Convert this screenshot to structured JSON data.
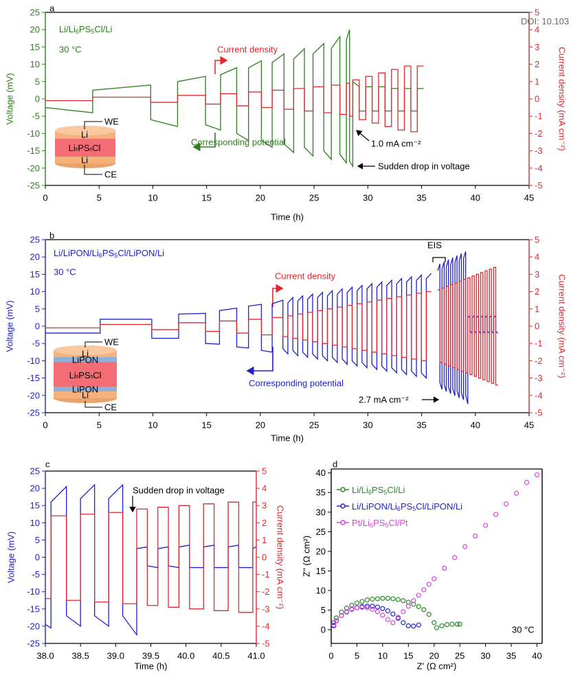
{
  "chart_data": [
    {
      "type": "line",
      "panel_label": "a",
      "x_label": "Time (h)",
      "y_label": "Voltage (mV)",
      "y2_label": "Current density (mA cm⁻²)",
      "xlim": [
        0,
        45
      ],
      "xticks": [
        0,
        5,
        10,
        15,
        20,
        25,
        30,
        35,
        40,
        45
      ],
      "ylim": [
        -25,
        25
      ],
      "yticks": [
        -25,
        -20,
        -15,
        -10,
        -5,
        0,
        5,
        10,
        15,
        20,
        25
      ],
      "y2lim": [
        -5,
        5
      ],
      "y2ticks": [
        -5,
        -4,
        -3,
        -2,
        -1,
        0,
        1,
        2,
        3,
        4,
        5
      ],
      "x": [
        0,
        4.4,
        4.4,
        9.8,
        9.8,
        12.3,
        12.3,
        14.9,
        14.9,
        16.3,
        16.3,
        17.8,
        17.8,
        18.9,
        18.9,
        20.1,
        20.1,
        21.1,
        21.1,
        22.2,
        22.2,
        23.1,
        23.1,
        24.1,
        24.1,
        24.9,
        24.9,
        25.9,
        25.9,
        26.6,
        26.6,
        27.4,
        27.4,
        28.0,
        28.0,
        28.3,
        28.3,
        28.6,
        28.6,
        29.2,
        29.2,
        29.8,
        29.8,
        30.4,
        30.4,
        31.0,
        31.0,
        31.6,
        31.6,
        32.2,
        32.2,
        32.8,
        32.8,
        33.4,
        33.4,
        34.0,
        34.0,
        34.6,
        34.6,
        35.2
      ],
      "series": [
        {
          "name": "Corresponding potential",
          "color": "#2e7d1f",
          "values": [
            -2.5,
            -4,
            2.5,
            4,
            -6,
            -8,
            5,
            6.5,
            -7.5,
            -9,
            7,
            9,
            -10,
            -12,
            9,
            11,
            -12,
            -14,
            10.5,
            13,
            -13,
            -15.5,
            11.5,
            14.5,
            -14,
            -16.5,
            13,
            16,
            -15,
            -17.5,
            14.5,
            18,
            -16,
            -18.5,
            17,
            20,
            -18,
            -19.5,
            5,
            3.5,
            -3.5,
            -3.5,
            3.5,
            3.5,
            -3.5,
            -3.5,
            3.5,
            3.5,
            -3.5,
            -3.5,
            3,
            3,
            -3.5,
            -3.5,
            3,
            3,
            -3.5,
            -3.5,
            3,
            3
          ]
        },
        {
          "name": "Current density",
          "color": "#e0282e",
          "axis": "y2",
          "values": [
            -0.1,
            -0.1,
            0.1,
            0.1,
            -0.2,
            -0.2,
            0.2,
            0.2,
            -0.3,
            -0.3,
            0.3,
            0.3,
            -0.4,
            -0.4,
            0.4,
            0.4,
            -0.5,
            -0.5,
            0.5,
            0.5,
            -0.6,
            -0.6,
            0.6,
            0.6,
            -0.7,
            -0.7,
            0.7,
            0.7,
            -0.8,
            -0.8,
            0.8,
            0.8,
            -0.9,
            -0.9,
            0.9,
            0.9,
            -1.0,
            -1.0,
            1.1,
            1.1,
            -1.2,
            -1.2,
            1.3,
            1.3,
            -1.4,
            -1.4,
            1.5,
            1.5,
            -1.6,
            -1.6,
            1.7,
            1.7,
            -1.8,
            -1.8,
            1.9,
            1.9,
            -1.9,
            -1.9,
            1.9,
            1.9
          ]
        }
      ],
      "annotations": [
        "Li/Li6PS5Cl/Li",
        "30 °C",
        "1.0 mA cm⁻²",
        "Sudden drop in voltage",
        "WE",
        "Li",
        "Li6PS5Cl",
        "Li",
        "CE",
        "DOI: 10.103"
      ]
    },
    {
      "type": "line",
      "panel_label": "b",
      "x_label": "Time (h)",
      "y_label": "Voltage (mV)",
      "y2_label": "Current density (mA cm⁻²)",
      "xlim": [
        0,
        45
      ],
      "xticks": [
        0,
        5,
        10,
        15,
        20,
        25,
        30,
        35,
        40,
        45
      ],
      "ylim": [
        -25,
        25
      ],
      "yticks": [
        -25,
        -20,
        -15,
        -10,
        -5,
        0,
        5,
        10,
        15,
        20,
        25
      ],
      "y2lim": [
        -5,
        5
      ],
      "y2ticks": [
        -5,
        -4,
        -3,
        -2,
        -1,
        0,
        1,
        2,
        3,
        4,
        5
      ],
      "x": [
        0,
        5.1,
        5.1,
        9.9,
        9.9,
        12.4,
        12.4,
        14.9,
        14.9,
        16.2,
        16.2,
        17.8,
        17.8,
        18.9,
        18.9,
        20.1,
        20.1,
        21.1,
        21.1,
        22.1,
        22.1,
        22.56,
        22.56,
        23.02,
        23.02,
        23.48,
        23.48,
        23.94,
        23.94,
        24.4,
        24.4,
        24.86,
        24.86,
        25.32,
        25.32,
        25.78,
        25.78,
        26.24,
        26.24,
        26.7,
        26.7,
        27.16,
        27.16,
        27.62,
        27.62,
        28.08,
        28.08,
        28.54,
        28.54,
        29.0,
        29.0,
        29.46,
        29.46,
        29.92,
        29.92,
        30.38,
        30.38,
        30.84,
        30.84,
        31.3,
        31.3,
        31.76,
        31.76,
        32.22,
        32.22,
        32.68,
        32.68,
        33.14,
        33.14,
        33.6,
        33.6,
        34.06,
        34.06,
        34.52,
        34.52,
        34.98,
        34.98,
        35.44,
        35.44,
        35.9,
        36.2,
        36.5,
        36.7,
        36.7,
        36.9,
        36.9,
        37.1,
        37.1,
        37.3,
        37.3,
        37.5,
        37.5,
        37.7,
        37.7,
        37.9,
        37.9,
        38.1,
        38.1,
        38.3,
        38.3,
        38.5,
        38.5,
        38.7,
        38.7,
        38.9,
        38.9,
        39.1,
        39.1,
        39.3,
        39.3,
        39.5,
        39.5,
        39.7,
        39.7,
        39.9,
        39.9,
        40.1,
        40.1,
        40.3,
        40.3,
        40.5,
        40.5,
        40.7,
        40.7,
        40.9,
        40.9,
        41.1,
        41.1,
        41.3,
        41.3,
        41.5,
        41.5,
        41.7,
        41.7,
        41.9,
        41.9,
        42.1
      ],
      "series": [
        {
          "name": "Corresponding potential",
          "color": "#2020c8",
          "values": [
            -2,
            -2,
            2,
            2,
            -3.5,
            -3.5,
            3.5,
            3.7,
            -5,
            -5.2,
            4.5,
            5.2,
            -6,
            -6.3,
            5.8,
            6.3,
            -7,
            -7.5,
            6.5,
            7.5,
            -6.5,
            -8,
            6.75,
            8.25,
            -7,
            -8.5,
            7.25,
            8.75,
            -7.5,
            -9,
            7.75,
            9.25,
            -8,
            -9.5,
            8.25,
            9.75,
            -8.5,
            -10,
            8.75,
            10.25,
            -9,
            -10.5,
            9.25,
            10.75,
            -9.5,
            -11,
            9.75,
            11.25,
            -10,
            -11.5,
            10.25,
            11.75,
            -10.5,
            -12,
            10.75,
            12.25,
            -11,
            -12.5,
            11.25,
            12.75,
            -11.5,
            -13,
            11.75,
            13.25,
            -12,
            -13.5,
            12.25,
            13.75,
            -12.5,
            -14,
            12.75,
            14.25,
            -13,
            -14.5,
            13.25,
            14.75,
            -13.5,
            -15,
            13.75,
            15.25,
            null,
            16,
            18,
            -16.3,
            -18.3,
            16.6,
            18.6,
            -16.9,
            -18.9,
            17.2,
            19.2,
            -17.5,
            -19.5,
            17.8,
            19.8,
            -18.1,
            -20.1,
            18.4,
            20.4,
            -18.7,
            -20.7,
            19,
            21,
            -19.3,
            -21.3,
            19.6,
            21.6,
            -19.9,
            -22.5,
            2.5,
            3,
            -1.5,
            -2,
            2.5,
            3,
            -1.5,
            -2,
            2.5,
            3,
            -1.5,
            -2,
            2.5,
            3,
            -1.5,
            -2,
            2.5,
            3,
            -1.5,
            -2,
            2.5,
            3,
            -1.5,
            -2,
            2.5,
            3,
            -1.5,
            -2
          ]
        },
        {
          "name": "Current density",
          "color": "#e0282e",
          "axis": "y2",
          "values": [
            -0.1,
            -0.1,
            0.1,
            0.1,
            -0.2,
            -0.2,
            0.2,
            0.2,
            -0.3,
            -0.3,
            0.3,
            0.3,
            -0.4,
            -0.4,
            0.4,
            0.4,
            -0.5,
            -0.5,
            0.5,
            0.5,
            -0.6,
            -0.6,
            0.6,
            0.6,
            -0.7,
            -0.7,
            0.7,
            0.7,
            -0.8,
            -0.8,
            0.8,
            0.8,
            -0.9,
            -0.9,
            0.9,
            0.9,
            -1.0,
            -1.0,
            1.0,
            1.0,
            -1.1,
            -1.1,
            1.1,
            1.1,
            -1.2,
            -1.2,
            1.2,
            1.2,
            -1.3,
            -1.3,
            1.3,
            1.3,
            -1.4,
            -1.4,
            1.4,
            1.4,
            -1.5,
            -1.5,
            1.5,
            1.5,
            -1.6,
            -1.6,
            1.6,
            1.6,
            -1.7,
            -1.7,
            1.7,
            1.7,
            -1.8,
            -1.8,
            1.8,
            1.8,
            -1.9,
            -1.9,
            1.9,
            1.9,
            -2.0,
            -2.0,
            2.0,
            2.0,
            null,
            2.1,
            2.1,
            -2.1,
            -2.1,
            2.2,
            2.2,
            -2.2,
            -2.2,
            2.3,
            2.3,
            -2.3,
            -2.3,
            2.4,
            2.4,
            -2.4,
            -2.4,
            2.5,
            2.5,
            -2.5,
            -2.5,
            2.6,
            2.6,
            -2.6,
            -2.6,
            2.7,
            2.7,
            -2.7,
            -2.7,
            2.8,
            2.8,
            -2.8,
            -2.8,
            2.9,
            2.9,
            -2.9,
            -2.9,
            3.0,
            3.0,
            -3.0,
            -3.0,
            3.1,
            3.1,
            -3.1,
            -3.1,
            3.2,
            3.2,
            -3.2,
            -3.2,
            3.3,
            3.3,
            -3.3,
            -3.3,
            3.4,
            3.4,
            -3.4,
            -3.4
          ]
        }
      ],
      "annotations": [
        "Li/LiPON/Li6PS5Cl/LiPON/Li",
        "30 °C",
        "EIS",
        "2.7 mA cm⁻²",
        "WE",
        "Li",
        "LiPON",
        "Li6PS5Cl",
        "LiPON",
        "Li",
        "CE"
      ]
    },
    {
      "type": "line",
      "panel_label": "c",
      "x_label": "Time (h)",
      "y_label": "Voltage (mV)",
      "y2_label": "Current density (mA cm⁻²)",
      "xlim": [
        38,
        41
      ],
      "xticks": [
        {
          "value": 38,
          "label": "38.0"
        },
        38.5,
        {
          "value": 39,
          "label": "39.0"
        },
        39.5,
        {
          "value": 40,
          "label": "40.0"
        },
        40.5,
        {
          "value": 41,
          "label": "41.0"
        }
      ],
      "ylim": [
        -25,
        25
      ],
      "yticks": [
        -25,
        -20,
        -15,
        -10,
        -5,
        0,
        5,
        10,
        15,
        20,
        25
      ],
      "y2lim": [
        -5,
        5
      ],
      "y2ticks": [
        -5,
        -4,
        -3,
        -2,
        -1,
        0,
        1,
        2,
        3,
        4,
        5
      ],
      "x": [
        38.0,
        38.08,
        38.08,
        38.3,
        38.3,
        38.5,
        38.5,
        38.7,
        38.7,
        38.9,
        38.9,
        39.1,
        39.1,
        39.3,
        39.3,
        39.45,
        39.45,
        39.6,
        39.6,
        39.75,
        39.75,
        39.9,
        39.9,
        40.05,
        40.05,
        40.25,
        40.25,
        40.4,
        40.4,
        40.6,
        40.6,
        40.75,
        40.75,
        40.95,
        40.95,
        41.0
      ],
      "series": [
        {
          "color": "#2020c8",
          "values": [
            -19.5,
            -20.5,
            16,
            20.5,
            -17,
            -20,
            17,
            21,
            -17,
            -20,
            17,
            21,
            -17,
            -22.5,
            2.5,
            3,
            -2.5,
            -3,
            2.5,
            3,
            -2.5,
            -3,
            3,
            3.5,
            -3,
            -3,
            3,
            3.5,
            -3,
            -3,
            3,
            3.5,
            -3,
            -3,
            2.5,
            3
          ]
        },
        {
          "color": "#e0282e",
          "axis": "y2",
          "values": [
            -2.4,
            -2.4,
            2.4,
            2.4,
            -2.5,
            -2.5,
            2.5,
            2.5,
            -2.6,
            -2.6,
            2.6,
            2.6,
            -2.7,
            -2.7,
            2.8,
            2.8,
            -2.8,
            -2.8,
            2.9,
            2.9,
            -2.9,
            -2.9,
            3.0,
            3.0,
            -3.0,
            -3.0,
            3.1,
            3.1,
            -3.1,
            -3.1,
            3.2,
            3.2,
            -3.2,
            -3.2,
            3.2,
            3.2
          ]
        }
      ],
      "annotations": [
        "Sudden drop in voltage"
      ]
    },
    {
      "type": "scatter",
      "panel_label": "d",
      "x_label": "Z' (Ω cm²)",
      "y_label": "Z'' (Ω cm²)",
      "legend": "upper left",
      "xlim": [
        0,
        41
      ],
      "xticks": [
        0,
        5,
        10,
        15,
        20,
        25,
        30,
        35,
        40
      ],
      "ylim": [
        -3.5,
        41
      ],
      "yticks": [
        0,
        5,
        10,
        15,
        20,
        25,
        30,
        35,
        40
      ],
      "series": [
        {
          "name": "Li/Li6PS5Cl/Li",
          "color": "#2a8a2a",
          "x": [
            0.5,
            1,
            2,
            3,
            4,
            5,
            6,
            7,
            8,
            9,
            10,
            11,
            12,
            13,
            14,
            15,
            16,
            17,
            18,
            19,
            20,
            20.5,
            21.5,
            22.5,
            23.5,
            24.5,
            25
          ],
          "values": [
            1.8,
            3.0,
            4.5,
            5.5,
            6.2,
            6.8,
            7.2,
            7.6,
            7.8,
            7.9,
            8.0,
            8.0,
            7.9,
            7.7,
            7.4,
            7.0,
            6.5,
            5.9,
            5.1,
            3.9,
            1.8,
            0.5,
            1.0,
            1.3,
            1.4,
            1.4,
            1.4
          ]
        },
        {
          "name": "Li/LiPON/Li6PS5Cl/LiPON/Li",
          "color": "#2020d0",
          "x": [
            0.5,
            1,
            2,
            3,
            4,
            5,
            6,
            7,
            8,
            9,
            10,
            11,
            12,
            13,
            14,
            15,
            16,
            17
          ],
          "values": [
            1.0,
            2.3,
            3.6,
            4.5,
            5.2,
            5.6,
            5.9,
            6.0,
            6.0,
            5.8,
            5.4,
            4.8,
            4.0,
            2.9,
            1.8,
            1.0,
            0.9,
            1.2
          ]
        },
        {
          "name": "Pt/Li6PS5Cl/Pt",
          "color": "#e040e0",
          "x": [
            0.5,
            1,
            2,
            3,
            4,
            5,
            6,
            7,
            8,
            9,
            10,
            11,
            12,
            13,
            14,
            15,
            16,
            17,
            18,
            19,
            20,
            22,
            24,
            26,
            28,
            30,
            32,
            34,
            36,
            38,
            40
          ],
          "values": [
            1.2,
            2.3,
            3.6,
            4.6,
            5.3,
            5.6,
            5.7,
            5.6,
            5.2,
            4.6,
            3.7,
            2.6,
            1.8,
            3.2,
            4.6,
            6.0,
            7.4,
            8.8,
            10.2,
            11.6,
            13.0,
            15.7,
            18.4,
            21.2,
            23.9,
            26.6,
            29.4,
            32.1,
            34.8,
            37.6,
            39.5
          ]
        }
      ],
      "annotations": [
        "30 °C"
      ]
    }
  ]
}
